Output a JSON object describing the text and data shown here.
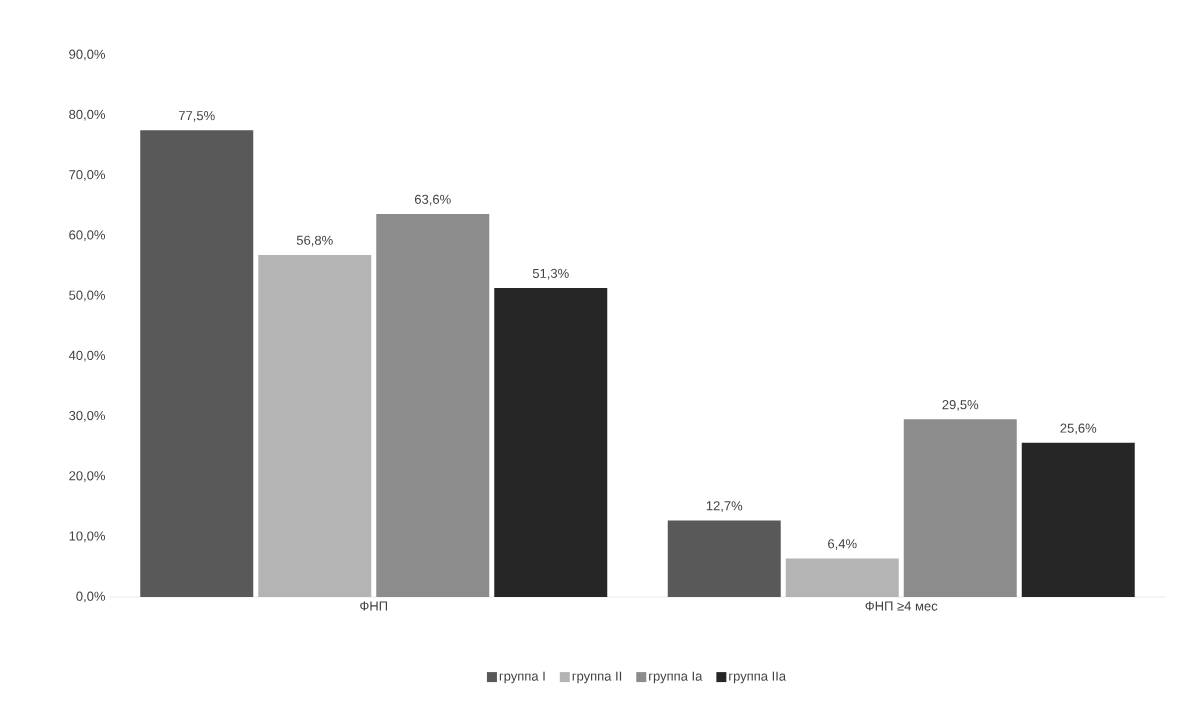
{
  "chart_data": {
    "type": "bar",
    "categories": [
      "ФНП",
      "ФНП ≥4 мес"
    ],
    "series": [
      {
        "name": "группа I",
        "color": "#595959",
        "values": [
          77.5,
          12.7
        ],
        "value_labels": [
          "77,5%",
          "12,7%"
        ]
      },
      {
        "name": "группа II",
        "color": "#b4b4b4",
        "values": [
          56.8,
          6.4
        ],
        "value_labels": [
          "56,8%",
          "6,4%"
        ]
      },
      {
        "name": "группа Ia",
        "color": "#8c8c8c",
        "values": [
          63.6,
          29.5
        ],
        "value_labels": [
          "63,6%",
          "29,5%"
        ]
      },
      {
        "name": "группа IIa",
        "color": "#262626",
        "values": [
          51.3,
          25.6
        ],
        "value_labels": [
          "51,3%",
          "25,6%"
        ]
      }
    ],
    "ylim": [
      0,
      90
    ],
    "yticks": [
      {
        "value": 0,
        "label": "0,0%"
      },
      {
        "value": 10,
        "label": "10,0%"
      },
      {
        "value": 20,
        "label": "20,0%"
      },
      {
        "value": 30,
        "label": "30,0%"
      },
      {
        "value": 40,
        "label": "40,0%"
      },
      {
        "value": 50,
        "label": "50,0%"
      },
      {
        "value": 60,
        "label": "60,0%"
      },
      {
        "value": 70,
        "label": "70,0%"
      },
      {
        "value": 80,
        "label": "80,0%"
      },
      {
        "value": 90,
        "label": "90,0%"
      }
    ],
    "legend": "bottom"
  }
}
